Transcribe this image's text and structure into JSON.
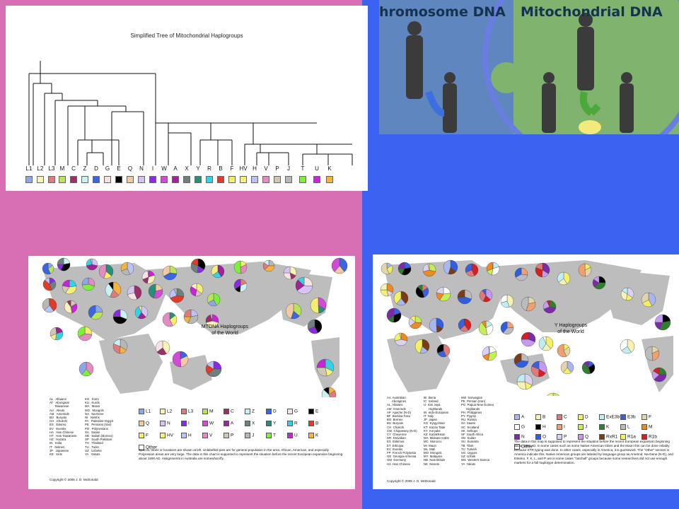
{
  "tree": {
    "title": "Simplified Tree of Mitochondrial Haplogroups",
    "leaves": [
      {
        "label": "L1",
        "color": "#8fa6e6"
      },
      {
        "label": "L2",
        "color": "#f9f2b8"
      },
      {
        "label": "L3",
        "color": "#e17b7b"
      },
      {
        "label": "M",
        "color": "#b8e35a"
      },
      {
        "label": "C",
        "color": "#9c2f6a"
      },
      {
        "label": "Z",
        "color": "#c8f2f4"
      },
      {
        "label": "D",
        "color": "#3c66e0"
      },
      {
        "label": "G",
        "color": "#f6e2e2"
      },
      {
        "label": "E",
        "color": "#000000"
      },
      {
        "label": "Q",
        "color": "#f2c9a0"
      },
      {
        "label": "N",
        "color": "#d7c3f2"
      },
      {
        "label": "I",
        "color": "#8a2be2"
      },
      {
        "label": "W",
        "color": "#d24bd6"
      },
      {
        "label": "A",
        "color": "#a0239b"
      },
      {
        "label": "X",
        "color": "#6e7f80"
      },
      {
        "label": "Y",
        "color": "#2a8f7a"
      },
      {
        "label": "R",
        "color": "#35d2e6"
      },
      {
        "label": "B",
        "color": "#e23b2b"
      },
      {
        "label": "F",
        "color": "#f3ef6b"
      },
      {
        "label": "HV",
        "color": "#f4f07a"
      },
      {
        "label": "H",
        "color": "#bbc3f6"
      },
      {
        "label": "V",
        "color": "#e48bc4"
      },
      {
        "label": "P",
        "color": "#cfc6b6"
      },
      {
        "label": "J",
        "color": "#b7b7b7"
      },
      {
        "label": "T",
        "color": "#7ef03b"
      },
      {
        "label": "U",
        "color": "#cc22d8"
      },
      {
        "label": "K",
        "color": "#f2b340"
      }
    ]
  },
  "dna": {
    "left_title": "hromosome DNA",
    "right_title": "Mitochondrial DNA"
  },
  "mt_map": {
    "title_line1": "MTDNA Haplogroups",
    "title_line2": "of the World",
    "place_legend_col1": "AL   Altaians\nAT   Aboriginal\n      Taiwanese\nAU   Aleuts\nAM   Amerinds\nBU   Buryats\nCH   Chukchi\nES   Eskimo\nEV   Evenks\nHA   Han Chinese\nHT   Han Taiwanese\nHZ   Hazara\nIN   India\nIT   Itelmen\nJP   Japanese\nKE   Kets",
    "place_legend_col2": "KO   Komi\nKU   Kurds\nMA   Mansi\nMO   Mongols\nNA   Na-Dene\nNI   Nivkhs\nPA   Palestine+Egypt\nPE   Persians (Iran)\nPO   Polynesians\nSA   Saami\nSB   Sabah (Borneo)\nSP   South Pakistan\nTH   Thailand\nTU   Turks\nUZ   Uzbeks\nYA   Yakuts",
    "haplogroups": [
      {
        "label": "L1",
        "color": "#8fa6e6"
      },
      {
        "label": "L2",
        "color": "#f9f2b8"
      },
      {
        "label": "L3",
        "color": "#e17b7b"
      },
      {
        "label": "M",
        "color": "#b8e35a"
      },
      {
        "label": "C",
        "color": "#9c2f6a"
      },
      {
        "label": "Z",
        "color": "#c8f2f4"
      },
      {
        "label": "D",
        "color": "#3c66e0"
      },
      {
        "label": "G",
        "color": "#f6e2e2"
      },
      {
        "label": "E",
        "color": "#000000"
      },
      {
        "label": "Q",
        "color": "#f2c9a0"
      },
      {
        "label": "N",
        "color": "#d7c3f2"
      },
      {
        "label": "I",
        "color": "#8a2be2"
      },
      {
        "label": "W",
        "color": "#d24bd6"
      },
      {
        "label": "A",
        "color": "#a0239b"
      },
      {
        "label": "X",
        "color": "#6e7f80"
      },
      {
        "label": "Y",
        "color": "#2a8f7a"
      },
      {
        "label": "R",
        "color": "#35d2e6"
      },
      {
        "label": "B",
        "color": "#e23b2b"
      },
      {
        "label": "F",
        "color": "#f3ef6b"
      },
      {
        "label": "HV",
        "color": "#f4f07a"
      },
      {
        "label": "H",
        "color": "#bbc3f6"
      },
      {
        "label": "V",
        "color": "#e48bc4"
      },
      {
        "label": "P",
        "color": "#cfc6b6"
      },
      {
        "label": "J",
        "color": "#b7b7b7"
      },
      {
        "label": "T",
        "color": "#7ef03b"
      },
      {
        "label": "U",
        "color": "#cc22d8"
      },
      {
        "label": "K",
        "color": "#f2b340"
      },
      {
        "label": "Other",
        "color": "#ffffff"
      }
    ],
    "note": "Specific tribes or locations are shown at left. Unlabelled pies are for general population in the area. African, American, and especially Polynesian areas are very large. The data in this chart is supposed to represent the situation before the recent European expansion beginning about 1500 AD. Assignments in Australia are somewhat iffy.",
    "copyright": "Copyright © 2005 J. D. McDonald"
  },
  "y_map": {
    "title_line1": "Y Haplogroups",
    "title_line2": "of the World",
    "place_legend_col1": "AA  Australian\n      Aborigines\nAL  Altaians\nAM  Amerinds\nAP  Apache (N-D)\nBF  Burkina Faso\nBO  Borneo\nBU  Buryats\nCH  Chukchi\nCW  Chippewey (N-D)\nCY  Cheyenne\nDR  Dravidian\nES  Eskimos\nET  Ethiopia\nEV  Evenks\nFP  French Polynesia\nGE  Georgia-Armenia\nGM  Germany\nHA  Han Chinese",
    "place_legend_col2": "IB  Iberia\nIC  Iceland\nIJ  Iran Jaya\n      Highlands\nIN  Indo-European\nIT  Italy\nJP  Japan\nKG  Kyrgyzstan\nKT  Kazan Tatar\nKY  Koryaks\nKZ  Kazakhstan\nMA  Mideast Arabs\nMC  Morocco\nMI  Maori\nML  Mali\nMO  Mongols\nMY  Malaysia\nNB  New Britain\nNE  Nenets",
    "place_legend_col3": "NW  Norwegian\nPE  Persian (Iran)\nPG  Papua New Guinea\n      Highlands\nPH  Philippines\nPY  Pygmy\nRU  Russia\nSA  Saami\nSC  Scotland\nSK  Selkups\nSF  South Africa\nSN  Sudan\nSU  Sumatra\nTB  Tibet\nTU  Turkish\nUG  Uygurs\nUZ  Uzbek\nWS  Western Samoa\nYA  Yakuts",
    "haplogroups": [
      {
        "label": "A",
        "color": "#aab6f0"
      },
      {
        "label": "B",
        "color": "#f7f2b3"
      },
      {
        "label": "C",
        "color": "#e07a7a"
      },
      {
        "label": "D",
        "color": "#f3f061"
      },
      {
        "label": "ExE3b",
        "color": "#bfeef0"
      },
      {
        "label": "E3b",
        "color": "#3b5fe0"
      },
      {
        "label": "F",
        "color": "#e2d6a8"
      },
      {
        "label": "G",
        "color": "#ffffff"
      },
      {
        "label": "H",
        "color": "#000000"
      },
      {
        "label": "I",
        "color": "#f0a070"
      },
      {
        "label": "J",
        "color": "#c3f057"
      },
      {
        "label": "K",
        "color": "#2f7f2f"
      },
      {
        "label": "L",
        "color": "#bbbbbb"
      },
      {
        "label": "M",
        "color": "#f08a20"
      },
      {
        "label": "N",
        "color": "#7b2aa8"
      },
      {
        "label": "O",
        "color": "#2f5fe0"
      },
      {
        "label": "P",
        "color": "#d9d2f4"
      },
      {
        "label": "Q",
        "color": "#c59bf2"
      },
      {
        "label": "RxR1",
        "color": "#7a3b18"
      },
      {
        "label": "R1a",
        "color": "#f7f06a"
      },
      {
        "label": "R1b",
        "color": "#d42020"
      },
      {
        "label": "Other",
        "color": "#ffffff"
      }
    ],
    "note": "The data in this map is supposed to represent the situation before the recent European expansion beginning about 1500 AD. In some cases such as some Native American tribes and the Maori this can be done reliably because STR typing was done. In other cases, especially in America, it is guesswork. The \"Other\" sectors in America indicate this. Native American groups are labeled by language group as Amerind, Na-Dene (N-D), and Eskimo. F, K, L, and P are in some cases \"catchall\" groups because some researchers did not use enough markers for a full haplotype determination.",
    "copyright": "Copyright © 2005 J. D. McDonald"
  }
}
